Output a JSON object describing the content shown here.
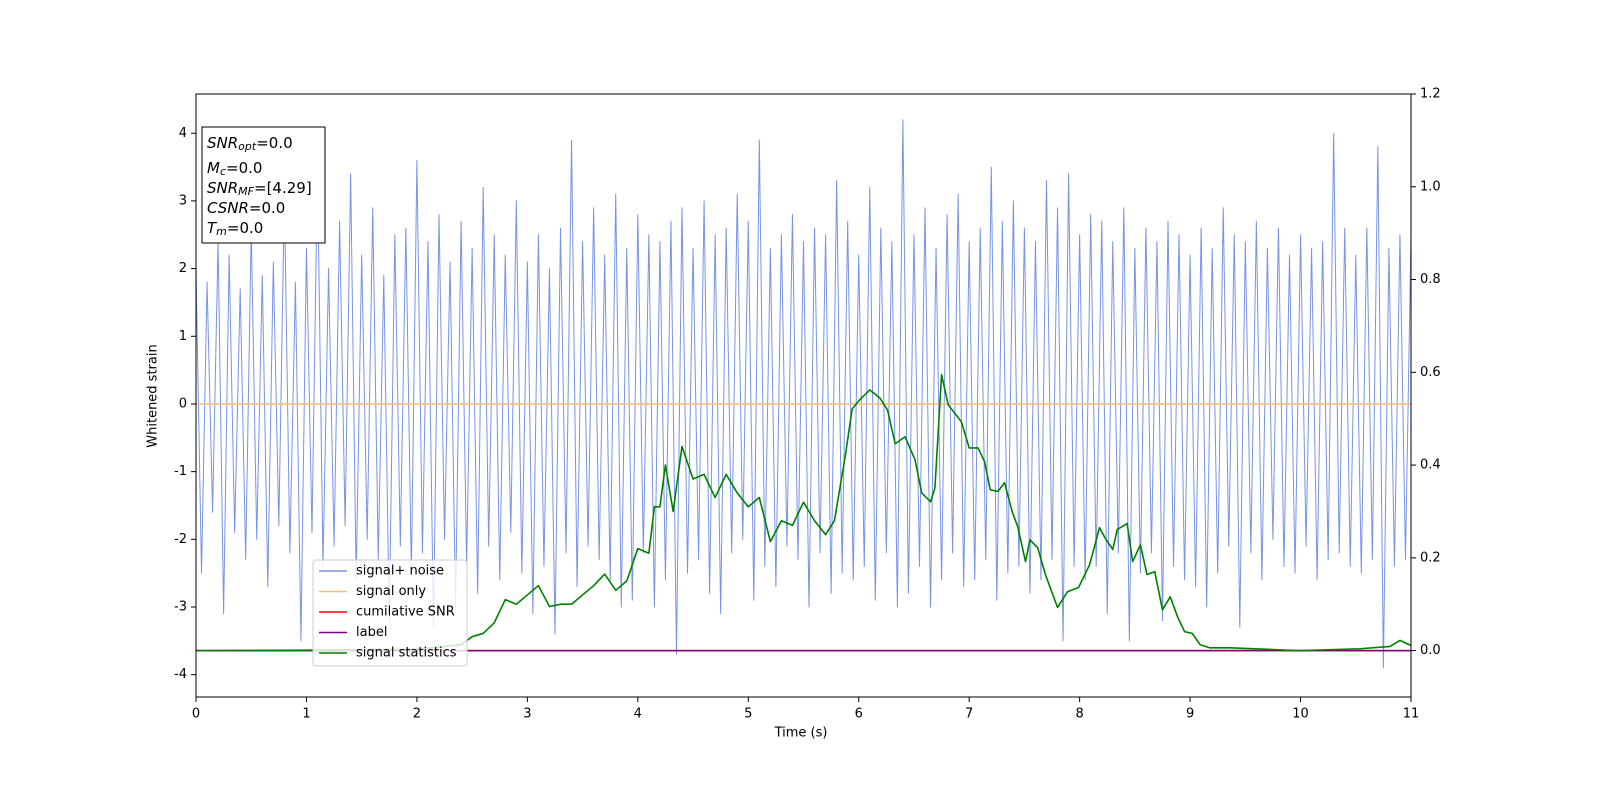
{
  "chart_data": {
    "type": "line",
    "xlabel": "Time (s)",
    "ylabel": "Whitened strain",
    "xlim": [
      0,
      11
    ],
    "xticks": [
      0,
      1,
      2,
      3,
      4,
      5,
      6,
      7,
      8,
      9,
      10,
      11
    ],
    "ylim": [
      -4.33,
      4.58
    ],
    "yticks": [
      -4,
      -3,
      -2,
      -1,
      0,
      1,
      2,
      3,
      4
    ],
    "y2lim": [
      -0.1,
      1.2
    ],
    "y2ticks": [
      {
        "value": 0,
        "label": "0.0"
      },
      0.2,
      0.4,
      0.6,
      0.8,
      {
        "value": 1,
        "label": "1.0"
      },
      1.2
    ],
    "legend": "lower left",
    "annotation": [
      {
        "name": "SNR",
        "sub": "opt",
        "text": "=0.0"
      },
      {
        "name": "M",
        "sub": "c",
        "text": "=0.0"
      },
      {
        "name": "SNR",
        "sub": "MF",
        "text": "=[4.29]"
      },
      {
        "name": "CSNR",
        "text": "=0.0"
      },
      {
        "name": "T",
        "sub": "m",
        "text": "=0.0"
      }
    ],
    "series": [
      {
        "name": "signal+ noise",
        "color": "#7893e8",
        "x": [
          0,
          0.05,
          0.1,
          0.15,
          0.2,
          0.25,
          0.3,
          0.35,
          0.4,
          0.45,
          0.5,
          0.55,
          0.6,
          0.65,
          0.7,
          0.75,
          0.8,
          0.85,
          0.9,
          0.95,
          1,
          1.05,
          1.1,
          1.15,
          1.2,
          1.25,
          1.3,
          1.35,
          1.4,
          1.45,
          1.5,
          1.55,
          1.6,
          1.65,
          1.7,
          1.75,
          1.8,
          1.85,
          1.9,
          1.95,
          2,
          2.05,
          2.1,
          2.15,
          2.2,
          2.25,
          2.3,
          2.35,
          2.4,
          2.45,
          2.5,
          2.55,
          2.6,
          2.65,
          2.7,
          2.75,
          2.8,
          2.85,
          2.9,
          2.95,
          3,
          3.05,
          3.1,
          3.15,
          3.2,
          3.25,
          3.3,
          3.35,
          3.4,
          3.45,
          3.5,
          3.55,
          3.6,
          3.65,
          3.7,
          3.75,
          3.8,
          3.85,
          3.9,
          3.95,
          4,
          4.05,
          4.1,
          4.15,
          4.2,
          4.25,
          4.3,
          4.35,
          4.4,
          4.45,
          4.5,
          4.55,
          4.6,
          4.65,
          4.7,
          4.75,
          4.8,
          4.85,
          4.9,
          4.95,
          5,
          5.05,
          5.1,
          5.15,
          5.2,
          5.25,
          5.3,
          5.35,
          5.4,
          5.45,
          5.5,
          5.55,
          5.6,
          5.65,
          5.7,
          5.75,
          5.8,
          5.85,
          5.9,
          5.95,
          6,
          6.05,
          6.1,
          6.15,
          6.2,
          6.25,
          6.3,
          6.35,
          6.4,
          6.45,
          6.5,
          6.55,
          6.6,
          6.65,
          6.7,
          6.75,
          6.8,
          6.85,
          6.9,
          6.95,
          7,
          7.05,
          7.1,
          7.15,
          7.2,
          7.25,
          7.3,
          7.35,
          7.4,
          7.45,
          7.5,
          7.55,
          7.6,
          7.65,
          7.7,
          7.75,
          7.8,
          7.85,
          7.9,
          7.95,
          8,
          8.05,
          8.1,
          8.15,
          8.2,
          8.25,
          8.3,
          8.35,
          8.4,
          8.45,
          8.5,
          8.55,
          8.6,
          8.65,
          8.7,
          8.75,
          8.8,
          8.85,
          8.9,
          8.95,
          9,
          9.05,
          9.1,
          9.15,
          9.2,
          9.25,
          9.3,
          9.35,
          9.4,
          9.45,
          9.5,
          9.55,
          9.6,
          9.65,
          9.7,
          9.75,
          9.8,
          9.85,
          9.9,
          9.95,
          10,
          10.05,
          10.1,
          10.15,
          10.2,
          10.25,
          10.3,
          10.35,
          10.4,
          10.45,
          10.5,
          10.55,
          10.6,
          10.65,
          10.7,
          10.75,
          10.8,
          10.85,
          10.9,
          10.95,
          11
        ],
        "values": [
          2.0,
          -2.5,
          1.8,
          -1.6,
          2.4,
          -3.1,
          2.2,
          -1.9,
          1.7,
          -2.3,
          2.6,
          -2.0,
          1.9,
          -2.7,
          2.1,
          -1.8,
          3.1,
          -2.2,
          1.8,
          -3.5,
          2.3,
          -1.9,
          3.5,
          -2.4,
          2.0,
          -2.1,
          2.7,
          -1.8,
          3.4,
          -2.6,
          2.2,
          -2.0,
          2.9,
          -2.3,
          1.9,
          -3.2,
          2.5,
          -2.1,
          2.6,
          -2.5,
          3.6,
          -2.2,
          2.4,
          -3.3,
          2.8,
          -2.0,
          2.1,
          -3.0,
          2.7,
          -2.4,
          2.3,
          -2.8,
          3.2,
          -2.1,
          2.5,
          -2.6,
          2.2,
          -1.9,
          3.0,
          -2.5,
          2.1,
          -3.1,
          2.5,
          -2.4,
          2.0,
          -3.4,
          2.6,
          -2.2,
          3.9,
          -2.7,
          2.4,
          -2.1,
          2.9,
          -2.3,
          2.2,
          -2.6,
          3.1,
          -3.0,
          2.3,
          -2.9,
          2.8,
          -2.2,
          2.5,
          -3.0,
          2.4,
          -2.6,
          2.7,
          -3.7,
          2.9,
          -2.5,
          2.3,
          -2.3,
          3.0,
          -2.8,
          2.5,
          -3.1,
          2.6,
          -2.2,
          3.1,
          -2.0,
          2.7,
          -2.9,
          3.9,
          -2.4,
          2.3,
          -2.7,
          2.5,
          -2.1,
          2.8,
          -2.3,
          2.4,
          -3.0,
          2.6,
          -2.2,
          2.5,
          -2.8,
          3.3,
          -2.5,
          2.7,
          -2.6,
          2.2,
          -2.4,
          3.2,
          -2.9,
          2.6,
          -2.2,
          2.4,
          -3.0,
          4.2,
          -2.8,
          2.5,
          -2.4,
          2.9,
          -3.0,
          2.3,
          -2.6,
          2.8,
          -2.2,
          3.1,
          -2.7,
          2.4,
          -2.6,
          2.6,
          -2.3,
          3.5,
          -2.9,
          2.7,
          -2.5,
          3.0,
          -2.4,
          2.6,
          -2.8,
          2.4,
          -2.6,
          3.3,
          -2.3,
          2.9,
          -3.5,
          3.4,
          -2.4,
          2.5,
          -2.6,
          2.8,
          -2.4,
          2.7,
          -3.1,
          2.4,
          -2.2,
          2.9,
          -3.5,
          2.3,
          -2.5,
          2.6,
          -2.2,
          2.4,
          -3.2,
          2.7,
          -2.4,
          2.5,
          -2.6,
          2.2,
          -2.7,
          2.6,
          -3.0,
          2.3,
          -2.5,
          2.9,
          -2.1,
          2.5,
          -3.3,
          2.4,
          -2.2,
          2.7,
          -2.6,
          2.3,
          -2.0,
          2.6,
          -2.4,
          2.2,
          -2.5,
          2.5,
          -2.1,
          2.3,
          -2.6,
          2.4,
          -2.3,
          4.0,
          -2.2,
          2.6,
          -2.4,
          2.2,
          -2.5,
          2.6,
          -2.3,
          3.8,
          -3.9,
          2.3,
          -2.4,
          2.5,
          -2.3,
          2.5
        ]
      },
      {
        "name": "signal only",
        "color": "#f7bd7a",
        "x": [
          0,
          11
        ],
        "values": [
          0,
          0
        ]
      },
      {
        "name": "cumilative SNR",
        "color": "#ff0000",
        "axis": "y2",
        "x": [
          0,
          11
        ],
        "values": [
          0,
          0
        ]
      },
      {
        "name": "label",
        "color": "#800080",
        "axis": "y2",
        "x": [
          0,
          11
        ],
        "values": [
          0,
          0
        ]
      },
      {
        "name": "signal statistics",
        "color": "#008000",
        "axis": "y2",
        "x": [
          0,
          1,
          2,
          2.3,
          2.4,
          2.5,
          2.6,
          2.7,
          2.8,
          2.9,
          3.0,
          3.1,
          3.2,
          3.3,
          3.4,
          3.5,
          3.6,
          3.7,
          3.8,
          3.9,
          4.0,
          4.1,
          4.15,
          4.2,
          4.25,
          4.32,
          4.4,
          4.5,
          4.6,
          4.7,
          4.8,
          4.9,
          5.0,
          5.1,
          5.2,
          5.3,
          5.4,
          5.5,
          5.6,
          5.7,
          5.78,
          5.88,
          5.94,
          6.01,
          6.1,
          6.19,
          6.26,
          6.33,
          6.42,
          6.51,
          6.57,
          6.65,
          6.69,
          6.75,
          6.81,
          6.93,
          7.0,
          7.08,
          7.14,
          7.19,
          7.26,
          7.32,
          7.39,
          7.44,
          7.51,
          7.55,
          7.62,
          7.69,
          7.8,
          7.89,
          7.99,
          8.09,
          8.18,
          8.23,
          8.3,
          8.34,
          8.43,
          8.48,
          8.55,
          8.61,
          8.68,
          8.75,
          8.82,
          8.89,
          8.95,
          9.02,
          9.09,
          9.18,
          9.36,
          9.99,
          10.54,
          10.81,
          10.9,
          11
        ],
        "values": [
          0,
          0.001,
          0.003,
          0.01,
          0.013,
          0.03,
          0.037,
          0.06,
          0.11,
          0.1,
          0.12,
          0.14,
          0.095,
          0.1,
          0.1,
          0.12,
          0.14,
          0.165,
          0.13,
          0.15,
          0.22,
          0.21,
          0.31,
          0.31,
          0.4,
          0.3,
          0.44,
          0.37,
          0.38,
          0.33,
          0.38,
          0.34,
          0.31,
          0.33,
          0.235,
          0.28,
          0.27,
          0.32,
          0.28,
          0.25,
          0.28,
          0.422,
          0.521,
          0.541,
          0.562,
          0.545,
          0.519,
          0.446,
          0.461,
          0.411,
          0.34,
          0.321,
          0.351,
          0.595,
          0.53,
          0.493,
          0.437,
          0.437,
          0.407,
          0.347,
          0.343,
          0.362,
          0.299,
          0.267,
          0.192,
          0.239,
          0.222,
          0.164,
          0.093,
          0.127,
          0.136,
          0.185,
          0.265,
          0.243,
          0.218,
          0.261,
          0.274,
          0.192,
          0.228,
          0.164,
          0.17,
          0.088,
          0.116,
          0.071,
          0.041,
          0.037,
          0.013,
          0.006,
          0.006,
          0,
          0.004,
          0.009,
          0.022,
          0.011
        ]
      }
    ]
  }
}
